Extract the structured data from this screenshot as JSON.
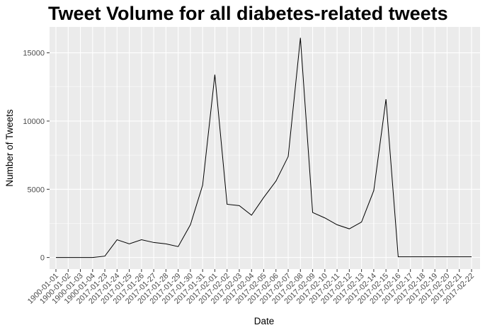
{
  "chart_data": {
    "type": "line",
    "title": "Tweet Volume for all diabetes-related tweets",
    "xlabel": "Date",
    "ylabel": "Number of Tweets",
    "x": [
      "1900-01-01",
      "1900-01-02",
      "1900-01-03",
      "1900-01-04",
      "2017-01-23",
      "2017-01-24",
      "2017-01-25",
      "2017-01-26",
      "2017-01-27",
      "2017-01-28",
      "2017-01-29",
      "2017-01-30",
      "2017-01-31",
      "2017-02-01",
      "2017-02-02",
      "2017-02-03",
      "2017-02-04",
      "2017-02-05",
      "2017-02-06",
      "2017-02-07",
      "2017-02-08",
      "2017-02-09",
      "2017-02-10",
      "2017-02-11",
      "2017-02-12",
      "2017-02-13",
      "2017-02-14",
      "2017-02-15",
      "2017-02-16",
      "2017-02-17",
      "2017-02-18",
      "2017-02-19",
      "2017-02-20",
      "2017-02-21",
      "2017-02-22"
    ],
    "values": [
      0,
      0,
      0,
      0,
      100,
      1300,
      1000,
      1300,
      1100,
      1000,
      800,
      2400,
      5300,
      13400,
      3900,
      3800,
      3100,
      4400,
      5600,
      7400,
      16100,
      3300,
      2900,
      2400,
      2100,
      2600,
      4900,
      11600,
      50,
      50,
      50,
      50,
      50,
      50,
      50
    ],
    "yticks": [
      0,
      5000,
      10000,
      15000
    ],
    "ytick_labels": [
      "0",
      "5000",
      "10000",
      "15000"
    ],
    "ylim": [
      -850,
      16900
    ],
    "grid": true,
    "colors": {
      "panel": "#ebebeb",
      "grid": "#ffffff",
      "line": "#000000"
    }
  }
}
